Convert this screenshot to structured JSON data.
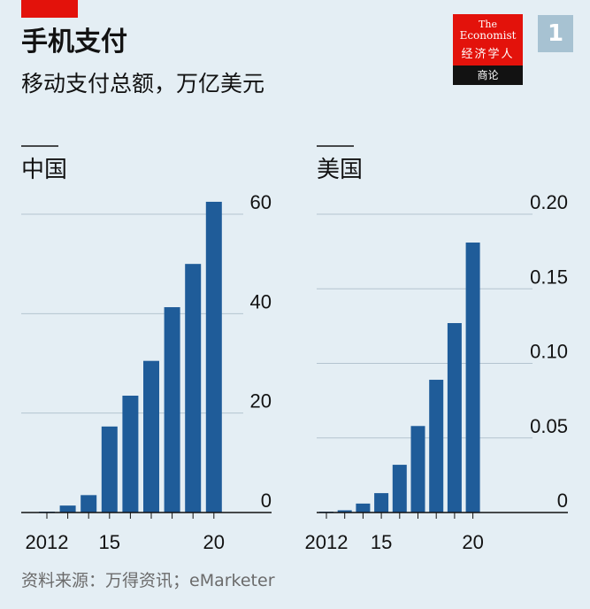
{
  "header": {
    "title": "手机支付",
    "subtitle": "移动支付总额，万亿美元",
    "logo_line1": "The",
    "logo_line2": "Economist",
    "logo_line3": "经济学人",
    "logo_line4": "商论",
    "badge": "1"
  },
  "source": "资料来源：万得资讯；eMarketer",
  "colors": {
    "bar": "#1f5c99",
    "background": "#e4eef4",
    "accent": "#e3120b",
    "grid": "#b4c4cf"
  },
  "chart_data": [
    {
      "type": "bar",
      "panel_title": "中国",
      "x": [
        2012,
        2013,
        2014,
        2015,
        2016,
        2017,
        2018,
        2019,
        2020
      ],
      "x_tick_labels": [
        "2012",
        "15",
        "20"
      ],
      "x_tick_positions": [
        2012,
        2015,
        2020
      ],
      "values": [
        0.15,
        1.4,
        3.5,
        17.3,
        23.5,
        30.5,
        41.3,
        50.0,
        62.5
      ],
      "ylim": [
        0,
        60
      ],
      "yticks": [
        0,
        20,
        40,
        60
      ],
      "ytick_labels": [
        "0",
        "20",
        "40",
        "60"
      ],
      "grid": true,
      "axis_side": "right"
    },
    {
      "type": "bar",
      "panel_title": "美国",
      "x": [
        2012,
        2013,
        2014,
        2015,
        2016,
        2017,
        2018,
        2019,
        2020
      ],
      "x_tick_labels": [
        "2012",
        "15",
        "20"
      ],
      "x_tick_positions": [
        2012,
        2015,
        2020
      ],
      "values": [
        0.0005,
        0.0015,
        0.006,
        0.013,
        0.032,
        0.058,
        0.089,
        0.127,
        0.181
      ],
      "ylim": [
        0,
        0.2
      ],
      "yticks": [
        0,
        0.05,
        0.1,
        0.15,
        0.2
      ],
      "ytick_labels": [
        "0",
        "0.05",
        "0.10",
        "0.15",
        "0.20"
      ],
      "grid": true,
      "axis_side": "right"
    }
  ]
}
